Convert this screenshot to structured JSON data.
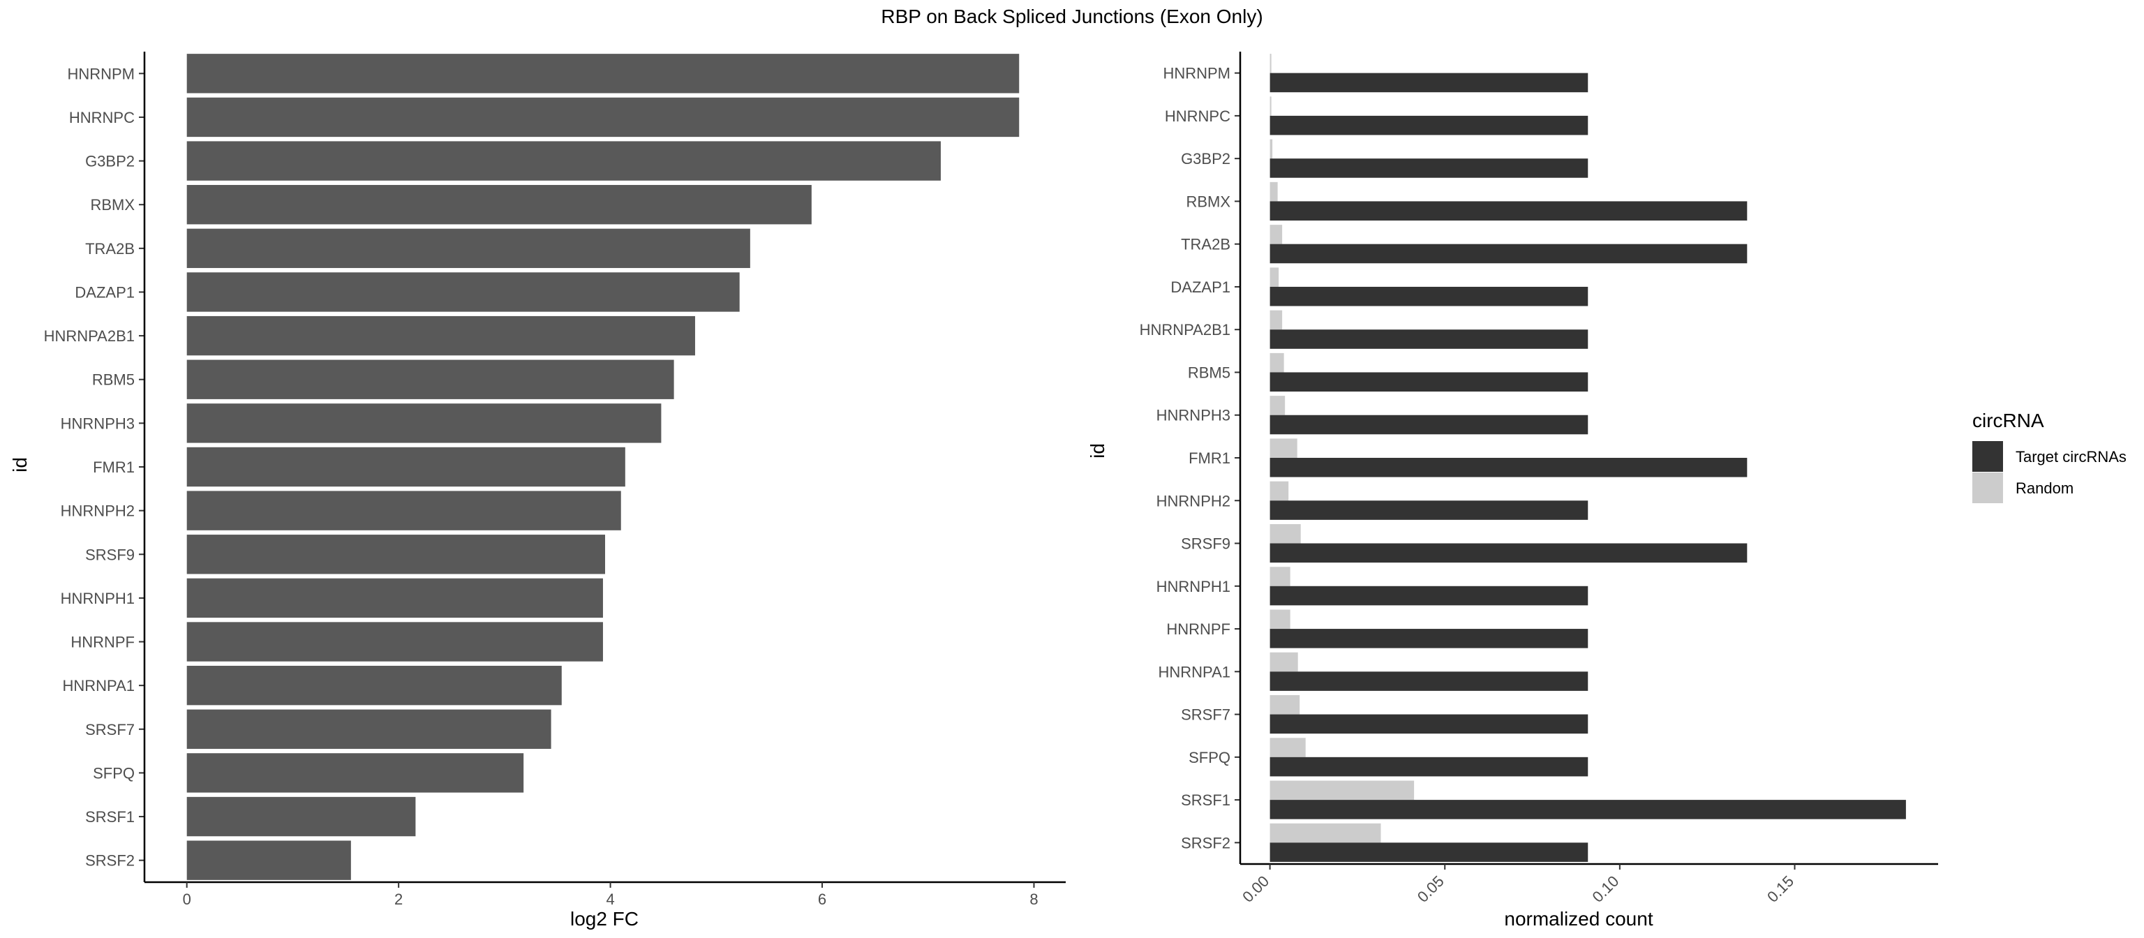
{
  "title": "RBP on Back Spliced Junctions (Exon Only)",
  "colors": {
    "bar": "#595959",
    "target": "#333333",
    "random": "#cccccc",
    "axis": "#000000",
    "tick_text": "#4d4d4d"
  },
  "chart_data": [
    {
      "type": "bar",
      "orientation": "horizontal",
      "xlabel": "log2 FC",
      "ylabel": "id",
      "xlim": [
        -0.4,
        8.3
      ],
      "xticks": [
        0,
        2,
        4,
        6,
        8
      ],
      "grid": false,
      "categories": [
        "HNRNPM",
        "HNRNPC",
        "G3BP2",
        "RBMX",
        "TRA2B",
        "DAZAP1",
        "HNRNPA2B1",
        "RBM5",
        "HNRNPH3",
        "FMR1",
        "HNRNPH2",
        "SRSF9",
        "HNRNPH1",
        "HNRNPF",
        "HNRNPA1",
        "SRSF7",
        "SFPQ",
        "SRSF1",
        "SRSF2"
      ],
      "values": [
        7.86,
        7.86,
        7.12,
        5.9,
        5.32,
        5.22,
        4.8,
        4.6,
        4.48,
        4.14,
        4.1,
        3.95,
        3.93,
        3.93,
        3.54,
        3.44,
        3.18,
        2.16,
        1.55
      ]
    },
    {
      "type": "bar",
      "orientation": "horizontal",
      "grouped": true,
      "xlabel": "normalized count",
      "ylabel": "id",
      "xlim": [
        -0.0085,
        0.191
      ],
      "xticks": [
        "0.00",
        "0.05",
        "0.10",
        "0.15"
      ],
      "xtick_values": [
        0,
        0.05,
        0.1,
        0.15
      ],
      "grid": false,
      "legend": {
        "title": "circRNA",
        "position": "right"
      },
      "categories": [
        "HNRNPM",
        "HNRNPC",
        "G3BP2",
        "RBMX",
        "TRA2B",
        "DAZAP1",
        "HNRNPA2B1",
        "RBM5",
        "HNRNPH3",
        "FMR1",
        "HNRNPH2",
        "SRSF9",
        "HNRNPH1",
        "HNRNPF",
        "HNRNPA1",
        "SRSF7",
        "SFPQ",
        "SRSF1",
        "SRSF2"
      ],
      "series": [
        {
          "name": "Target circRNAs",
          "values": [
            0.0909,
            0.0909,
            0.0909,
            0.1364,
            0.1364,
            0.0909,
            0.0909,
            0.0909,
            0.0909,
            0.1364,
            0.0909,
            0.1364,
            0.0909,
            0.0909,
            0.0909,
            0.0909,
            0.0909,
            0.1818,
            0.0909
          ]
        },
        {
          "name": "Random",
          "values": [
            0.0004,
            0.0004,
            0.0007,
            0.0022,
            0.0035,
            0.0025,
            0.0035,
            0.004,
            0.0043,
            0.0078,
            0.0053,
            0.0088,
            0.0058,
            0.0058,
            0.008,
            0.0085,
            0.0102,
            0.0412,
            0.0317
          ]
        }
      ]
    }
  ]
}
